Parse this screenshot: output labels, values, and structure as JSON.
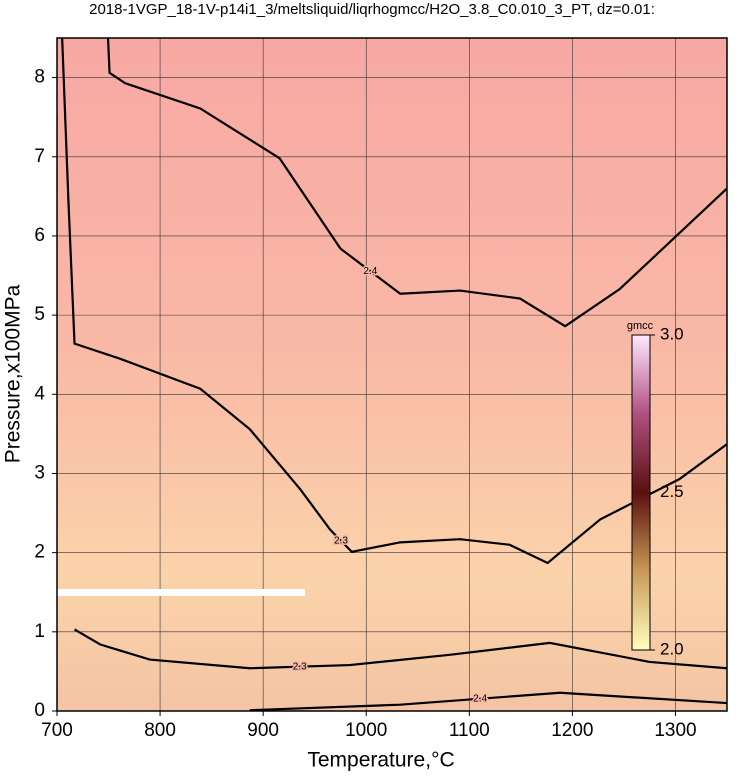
{
  "chart_data": {
    "type": "contour",
    "title": "2018-1VGP_18-1V-p14i1_3/meltsliquid/liqrhogmcc/H2O_3.8_C0.010_3_PT, dz=0.01:",
    "x_label": "Temperature,°C",
    "y_label": "Pressure,x100MPa",
    "xlim": [
      700,
      1350
    ],
    "ylim": [
      0,
      8.5
    ],
    "xticks": [
      700,
      800,
      900,
      1000,
      1100,
      1200,
      1300
    ],
    "yticks": [
      0,
      1,
      2,
      3,
      4,
      5,
      6,
      7,
      8
    ],
    "grid": true,
    "contours": [
      {
        "level": 2.4,
        "x": [
          749.5,
          751,
          766,
          839,
          916,
          975,
          1033,
          1091,
          1149,
          1193,
          1246,
          1350
        ],
        "y": [
          8.5,
          8.06,
          7.93,
          7.61,
          6.98,
          5.84,
          5.27,
          5.31,
          5.21,
          4.86,
          5.33,
          6.6
        ]
      },
      {
        "level": 2.3,
        "x": [
          705,
          711,
          717,
          761,
          839,
          887,
          936,
          965,
          986,
          1033,
          1091,
          1139,
          1176,
          1227,
          1304,
          1350
        ],
        "y": [
          8.5,
          6.47,
          4.64,
          4.45,
          4.07,
          3.56,
          2.8,
          2.29,
          2.01,
          2.13,
          2.17,
          2.1,
          1.87,
          2.42,
          2.93,
          3.37
        ]
      },
      {
        "level": 2.3,
        "x": [
          717,
          742,
          790,
          887,
          984,
          1081,
          1178,
          1275,
          1350
        ],
        "y": [
          1.03,
          0.84,
          0.65,
          0.54,
          0.58,
          0.71,
          0.86,
          0.62,
          0.54
        ]
      },
      {
        "level": 2.4,
        "x": [
          887,
          1033,
          1188,
          1350
        ],
        "y": [
          0.01,
          0.08,
          0.23,
          0.1
        ]
      }
    ],
    "colorbar": {
      "label": "gmcc",
      "lim": [
        2.0,
        3.0
      ],
      "ticks": [
        {
          "value": 3,
          "label": "3.0"
        },
        2.5,
        {
          "value": 2,
          "label": "2.0"
        }
      ]
    }
  }
}
